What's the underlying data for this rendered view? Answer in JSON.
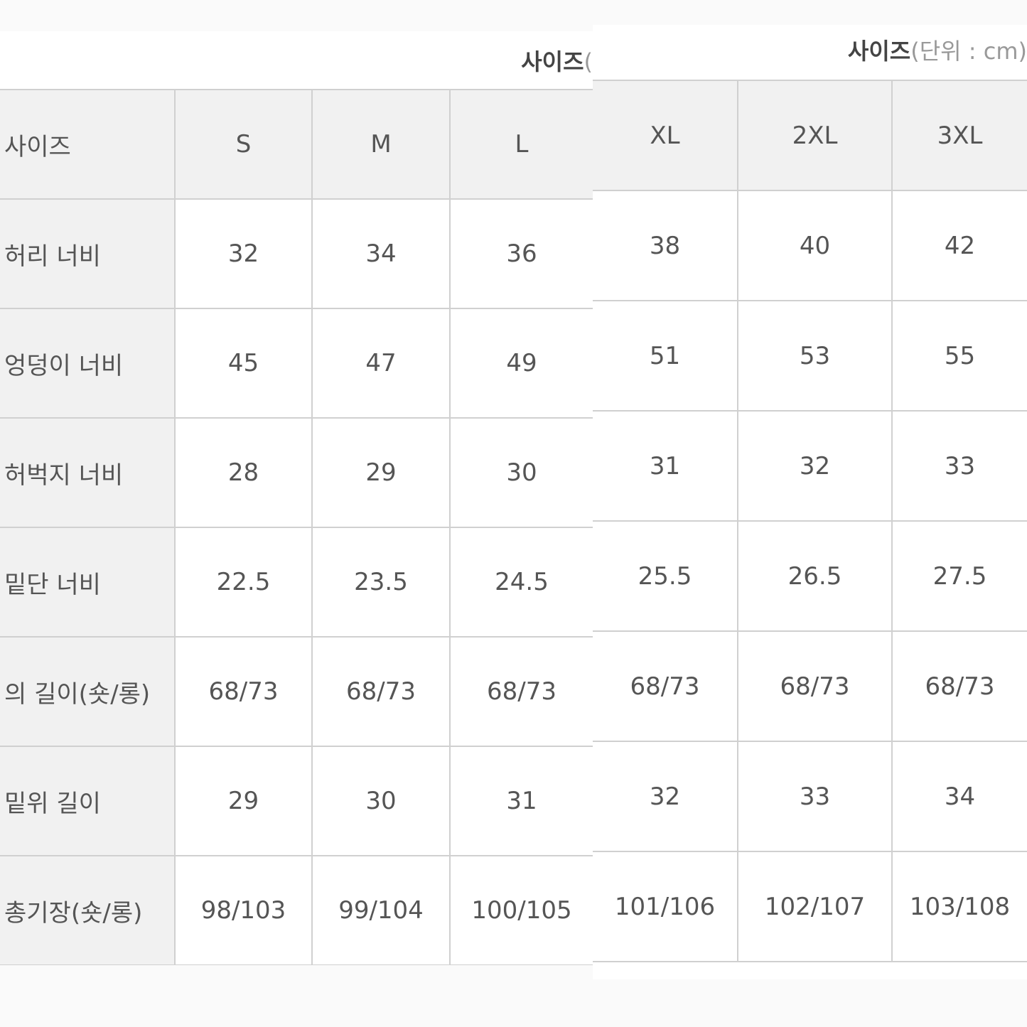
{
  "left_panel": {
    "title_bold": "사이즈",
    "title_rest": "(",
    "header": [
      "사이즈",
      "S",
      "M",
      "L"
    ],
    "rows": [
      {
        "label": "허리 너비",
        "values": [
          "32",
          "34",
          "36"
        ]
      },
      {
        "label": "엉덩이 너비",
        "values": [
          "45",
          "47",
          "49"
        ]
      },
      {
        "label": "허벅지 너비",
        "values": [
          "28",
          "29",
          "30"
        ]
      },
      {
        "label": "밑단 너비",
        "values": [
          "22.5",
          "23.5",
          "24.5"
        ]
      },
      {
        "label": "의 길이(숏/롱)",
        "values": [
          "68/73",
          "68/73",
          "68/73"
        ]
      },
      {
        "label": "밑위 길이",
        "values": [
          "29",
          "30",
          "31"
        ]
      },
      {
        "label": "총기장(숏/롱)",
        "values": [
          "98/103",
          "99/104",
          "100/105"
        ]
      }
    ]
  },
  "right_panel": {
    "title_bold": "사이즈",
    "title_rest": "(단위 : cm)",
    "header": [
      "XL",
      "2XL",
      "3XL"
    ],
    "rows": [
      {
        "values": [
          "38",
          "40",
          "42"
        ]
      },
      {
        "values": [
          "51",
          "53",
          "55"
        ]
      },
      {
        "values": [
          "31",
          "32",
          "33"
        ]
      },
      {
        "values": [
          "25.5",
          "26.5",
          "27.5"
        ]
      },
      {
        "values": [
          "68/73",
          "68/73",
          "68/73"
        ]
      },
      {
        "values": [
          "32",
          "33",
          "34"
        ]
      },
      {
        "values": [
          "101/106",
          "102/107",
          "103/108"
        ]
      }
    ]
  }
}
